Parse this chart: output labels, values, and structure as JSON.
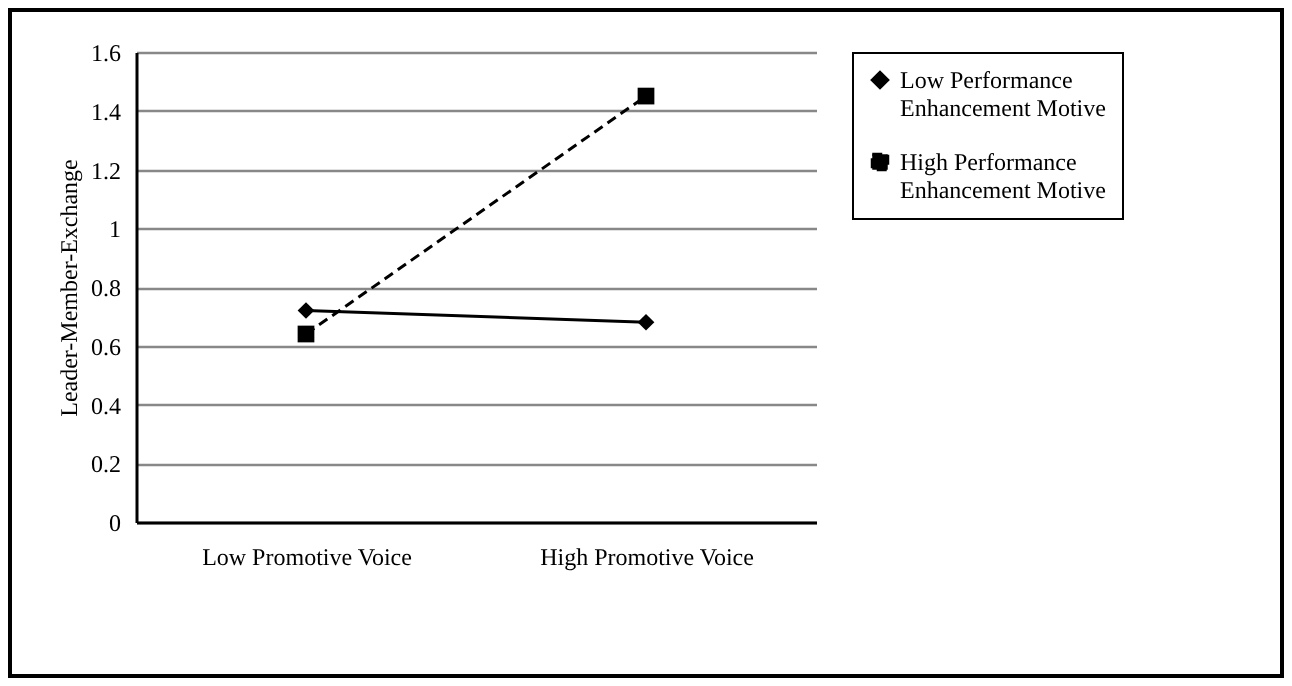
{
  "chart_data": {
    "type": "line",
    "ylabel": "Leader-Member-Exchange",
    "categories": [
      "Low Promotive Voice",
      "High Promotive Voice"
    ],
    "series": [
      {
        "name": "Low Performance Enhancement Motive",
        "color": "#000000",
        "values": [
          0.72,
          0.68
        ],
        "marker": "diamond",
        "line_style": "solid"
      },
      {
        "name": "High Performance Enhancement Motive",
        "color": "#000000",
        "values": [
          0.64,
          1.45
        ],
        "marker": "square",
        "line_style": "dashed"
      }
    ],
    "ylim": [
      0,
      1.6
    ],
    "yticks": [
      0,
      0.2,
      0.4,
      0.6,
      0.8,
      1,
      1.2,
      1.4,
      1.6
    ],
    "grid": "y",
    "legend": "right"
  }
}
